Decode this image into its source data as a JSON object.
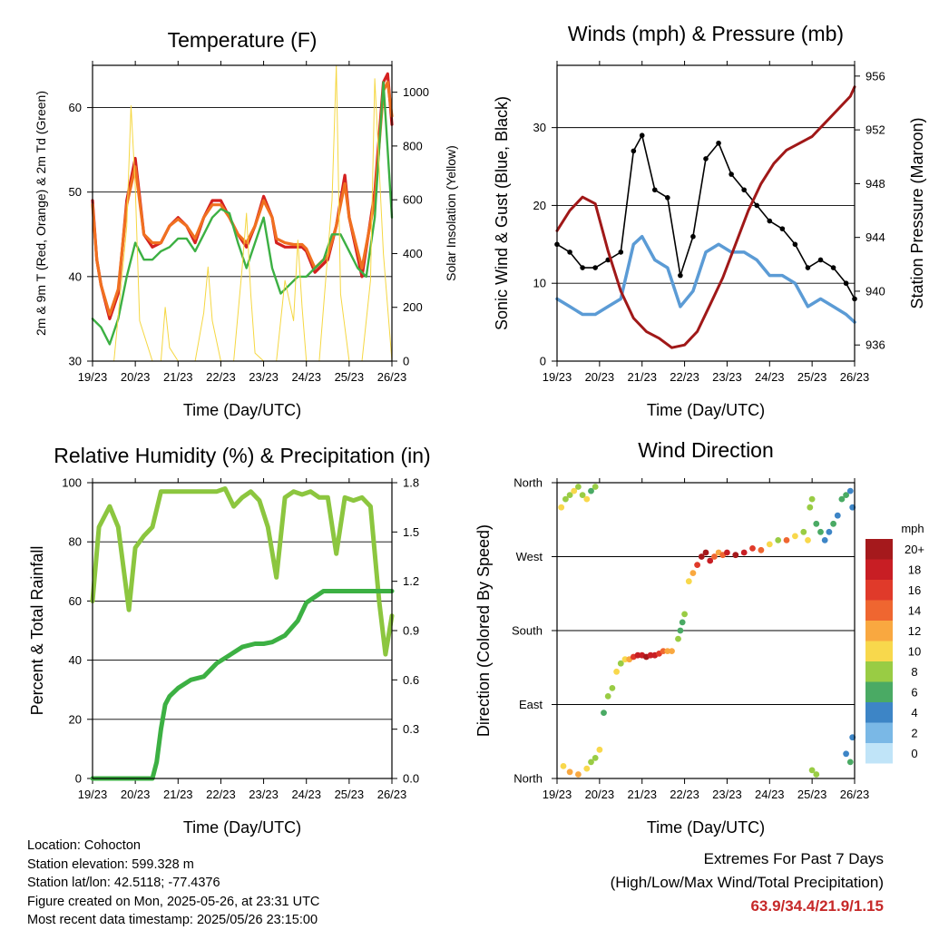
{
  "chart_data": [
    {
      "type": "line",
      "title": "Temperature (F)",
      "xlabel": "Time (Day/UTC)",
      "ylabel": "2m & 9m T (Red, Orange) & 2m Td (Green)",
      "y2label": "Solar Insolation (Yellow)",
      "ylim": [
        30,
        65
      ],
      "y2lim": [
        0,
        1100
      ],
      "yticks": [
        30,
        40,
        50,
        60
      ],
      "y2ticks": [
        0,
        200,
        400,
        600,
        800,
        1000
      ],
      "xticks": [
        "19/23",
        "20/23",
        "21/23",
        "22/23",
        "23/23",
        "24/23",
        "25/23",
        "26/23"
      ],
      "grid": "horizontal",
      "series": [
        {
          "name": "2m T",
          "color": "#d42020",
          "x": [
            0,
            0.1,
            0.2,
            0.4,
            0.6,
            0.8,
            1.0,
            1.2,
            1.4,
            1.6,
            1.8,
            2.0,
            2.2,
            2.4,
            2.6,
            2.8,
            3.0,
            3.2,
            3.4,
            3.6,
            3.8,
            4.0,
            4.2,
            4.3,
            4.5,
            4.7,
            4.9,
            5.0,
            5.2,
            5.5,
            5.7,
            5.9,
            6.0,
            6.3,
            6.6,
            6.8,
            6.9,
            7.0
          ],
          "values": [
            49,
            42,
            39,
            35,
            38,
            49,
            54,
            45,
            43.5,
            44,
            46,
            47,
            46,
            44,
            47,
            49,
            49,
            47,
            45,
            43.5,
            46,
            49.5,
            47,
            44,
            43.5,
            43.5,
            43.5,
            43,
            40.5,
            42,
            46,
            52,
            47,
            40,
            50,
            63,
            64,
            58
          ]
        },
        {
          "name": "9m T",
          "color": "#f07020",
          "x": [
            0,
            0.1,
            0.2,
            0.4,
            0.6,
            0.8,
            1.0,
            1.2,
            1.4,
            1.6,
            1.8,
            2.0,
            2.2,
            2.4,
            2.6,
            2.8,
            3.0,
            3.2,
            3.4,
            3.6,
            3.8,
            4.0,
            4.2,
            4.3,
            4.5,
            4.7,
            4.9,
            5.0,
            5.2,
            5.5,
            5.7,
            5.9,
            6.0,
            6.3,
            6.6,
            6.8,
            6.9,
            7.0
          ],
          "values": [
            48.5,
            42,
            39,
            35.5,
            38.5,
            48.5,
            53,
            45,
            44,
            44,
            46,
            46.8,
            46,
            44.5,
            47,
            48.5,
            48.5,
            47,
            45,
            44,
            46,
            49,
            47,
            44.5,
            44,
            43.8,
            43.8,
            43.3,
            41,
            42.5,
            46,
            51,
            47,
            41,
            49,
            62,
            63,
            59
          ]
        },
        {
          "name": "2m Td",
          "color": "#3cb043",
          "x": [
            0,
            0.2,
            0.4,
            0.6,
            0.8,
            1.0,
            1.2,
            1.4,
            1.6,
            1.8,
            2.0,
            2.2,
            2.4,
            2.6,
            2.8,
            3.0,
            3.2,
            3.4,
            3.6,
            3.8,
            4.0,
            4.2,
            4.4,
            4.6,
            4.8,
            5.0,
            5.2,
            5.4,
            5.6,
            5.8,
            6.0,
            6.2,
            6.4,
            6.6,
            6.8,
            7.0
          ],
          "values": [
            35,
            34,
            32,
            35,
            40,
            44,
            42,
            42,
            43,
            43.5,
            44.5,
            44.5,
            43,
            45,
            47,
            48,
            47.5,
            44,
            41,
            44,
            47,
            41,
            38,
            39,
            40,
            40,
            41,
            42,
            45,
            45,
            43,
            41,
            40,
            47,
            63,
            47
          ]
        },
        {
          "name": "Solar Insolation",
          "color": "#f5d742",
          "x": [
            0,
            0.3,
            0.5,
            0.8,
            0.9,
            1.0,
            1.1,
            1.4,
            1.6,
            1.7,
            1.8,
            2.0,
            2.4,
            2.6,
            2.7,
            2.8,
            3.0,
            3.3,
            3.5,
            3.6,
            3.7,
            3.8,
            4.0,
            4.3,
            4.5,
            4.7,
            4.8,
            4.9,
            5.0,
            5.3,
            5.6,
            5.7,
            5.8,
            6.0,
            6.3,
            6.5,
            6.6,
            6.8,
            7.0
          ],
          "values": [
            0,
            0,
            0,
            500,
            950,
            650,
            150,
            0,
            0,
            200,
            50,
            0,
            0,
            180,
            350,
            150,
            0,
            0,
            350,
            550,
            250,
            30,
            0,
            0,
            300,
            150,
            450,
            200,
            0,
            0,
            600,
            1100,
            250,
            0,
            0,
            300,
            1050,
            400,
            0
          ]
        }
      ]
    },
    {
      "type": "line",
      "title": "Winds (mph) & Pressure (mb)",
      "xlabel": "Time (Day/UTC)",
      "ylabel": "Sonic Wind & Gust (Blue, Black)",
      "y2label": "Station Pressure (Maroon)",
      "ylim": [
        0,
        38
      ],
      "y2lim": [
        934.8,
        956.8
      ],
      "yticks": [
        0,
        10,
        20,
        30
      ],
      "y2ticks": [
        936,
        940,
        944,
        948,
        952,
        956
      ],
      "xticks": [
        "19/23",
        "20/23",
        "21/23",
        "22/23",
        "23/23",
        "24/23",
        "25/23",
        "26/23"
      ],
      "grid": "horizontal",
      "series": [
        {
          "name": "Sonic Wind",
          "color": "#5b9bd5",
          "x": [
            0,
            0.3,
            0.6,
            0.9,
            1.2,
            1.5,
            1.8,
            2.0,
            2.3,
            2.6,
            2.9,
            3.2,
            3.5,
            3.8,
            4.1,
            4.4,
            4.7,
            5.0,
            5.3,
            5.6,
            5.9,
            6.2,
            6.5,
            6.8,
            7.0
          ],
          "values": [
            8,
            7,
            6,
            6,
            7,
            8,
            15,
            16,
            13,
            12,
            7,
            9,
            14,
            15,
            14,
            14,
            13,
            11,
            11,
            10,
            7,
            8,
            7,
            6,
            5
          ]
        },
        {
          "name": "Gust",
          "color": "#000000",
          "x": [
            0,
            0.3,
            0.6,
            0.9,
            1.2,
            1.5,
            1.8,
            2.0,
            2.3,
            2.6,
            2.9,
            3.2,
            3.5,
            3.8,
            4.1,
            4.4,
            4.7,
            5.0,
            5.3,
            5.6,
            5.9,
            6.2,
            6.5,
            6.8,
            7.0
          ],
          "values": [
            15,
            14,
            12,
            12,
            13,
            14,
            27,
            29,
            22,
            21,
            11,
            16,
            26,
            28,
            24,
            22,
            20,
            18,
            17,
            15,
            12,
            13,
            12,
            10,
            8
          ]
        },
        {
          "name": "Station Pressure",
          "color": "#a01818",
          "x": [
            0,
            0.3,
            0.6,
            0.9,
            1.2,
            1.5,
            1.8,
            2.1,
            2.4,
            2.7,
            3.0,
            3.3,
            3.6,
            3.9,
            4.2,
            4.5,
            4.8,
            5.1,
            5.4,
            5.7,
            6.0,
            6.3,
            6.6,
            6.9,
            7.0
          ],
          "values": [
            944.5,
            946,
            947,
            946.5,
            943,
            940,
            938,
            937,
            936.5,
            935.8,
            936,
            937,
            939,
            941,
            943.5,
            946,
            948,
            949.5,
            950.5,
            951,
            951.5,
            952.5,
            953.5,
            954.5,
            955.2
          ]
        }
      ]
    },
    {
      "type": "line",
      "title": "Relative Humidity (%) & Precipitation (in)",
      "xlabel": "Time (Day/UTC)",
      "ylabel": "Percent & Total Rainfall",
      "ylim": [
        0,
        100
      ],
      "y2lim": [
        0,
        1.8
      ],
      "yticks": [
        0,
        20,
        40,
        60,
        80,
        100
      ],
      "y2ticks": [
        "0.0",
        "0.3",
        "0.6",
        "0.9",
        "1.2",
        "1.5",
        "1.8"
      ],
      "xticks": [
        "19/23",
        "20/23",
        "21/23",
        "22/23",
        "23/23",
        "24/23",
        "25/23",
        "26/23"
      ],
      "grid": "horizontal",
      "series": [
        {
          "name": "Relative Humidity",
          "color": "#8cc63f",
          "x": [
            0,
            0.15,
            0.4,
            0.6,
            0.85,
            1.0,
            1.2,
            1.4,
            1.6,
            1.8,
            2.0,
            2.3,
            2.6,
            2.9,
            3.1,
            3.3,
            3.5,
            3.7,
            3.9,
            4.1,
            4.3,
            4.5,
            4.7,
            4.9,
            5.1,
            5.3,
            5.5,
            5.7,
            5.9,
            6.1,
            6.3,
            6.5,
            6.7,
            6.85,
            7.0
          ],
          "values": [
            60,
            85,
            92,
            85,
            57,
            78,
            82,
            85,
            97,
            97,
            97,
            97,
            97,
            97,
            98,
            92,
            95,
            97,
            94,
            85,
            68,
            95,
            97,
            96,
            97,
            95,
            95,
            76,
            95,
            94,
            95,
            92,
            60,
            42,
            55
          ]
        },
        {
          "name": "Total Rainfall",
          "color": "#3cb043",
          "x": [
            0,
            0.5,
            1.0,
            1.4,
            1.5,
            1.6,
            1.7,
            1.8,
            2.0,
            2.3,
            2.6,
            2.9,
            3.2,
            3.5,
            3.8,
            4.0,
            4.2,
            4.5,
            4.8,
            5.0,
            5.4,
            6.0,
            6.5,
            7.0
          ],
          "values": [
            0,
            0,
            0,
            0,
            0.1,
            0.3,
            0.45,
            0.5,
            0.55,
            0.6,
            0.62,
            0.7,
            0.75,
            0.8,
            0.82,
            0.82,
            0.83,
            0.87,
            0.96,
            1.07,
            1.14,
            1.14,
            1.14,
            1.14
          ]
        }
      ]
    },
    {
      "type": "scatter",
      "title": "Wind Direction",
      "xlabel": "Time (Day/UTC)",
      "ylabel": "Direction (Colored By Speed)",
      "ylim": [
        0,
        360
      ],
      "yticks": [
        "North",
        "East",
        "South",
        "West",
        "North"
      ],
      "xticks": [
        "19/23",
        "20/23",
        "21/23",
        "22/23",
        "23/23",
        "24/23",
        "25/23",
        "26/23"
      ],
      "grid": "horizontal",
      "colorbar": {
        "unit": "mph",
        "labels": [
          "20+",
          "18",
          "16",
          "14",
          "12",
          "10",
          "8",
          "6",
          "4",
          "2",
          "0"
        ],
        "colors": [
          "#a5191c",
          "#c81e24",
          "#e03a2a",
          "#ef6630",
          "#f9a840",
          "#f8d84c",
          "#99cc44",
          "#4aaa64",
          "#3d85c6",
          "#7ab8e6",
          "#c0e4f8"
        ]
      },
      "points": [
        [
          0.1,
          330,
          9
        ],
        [
          0.2,
          340,
          8
        ],
        [
          0.3,
          345,
          8
        ],
        [
          0.4,
          350,
          10
        ],
        [
          0.5,
          355,
          8
        ],
        [
          0.6,
          345,
          7
        ],
        [
          0.7,
          340,
          9
        ],
        [
          0.8,
          350,
          6
        ],
        [
          0.9,
          355,
          7
        ],
        [
          0.15,
          15,
          10
        ],
        [
          0.3,
          8,
          12
        ],
        [
          0.5,
          5,
          11
        ],
        [
          0.7,
          12,
          10
        ],
        [
          0.8,
          20,
          8
        ],
        [
          0.9,
          25,
          7
        ],
        [
          1.0,
          35,
          9
        ],
        [
          1.1,
          80,
          6
        ],
        [
          1.2,
          100,
          7
        ],
        [
          1.3,
          110,
          8
        ],
        [
          1.4,
          130,
          9
        ],
        [
          1.5,
          140,
          8
        ],
        [
          1.6,
          145,
          10
        ],
        [
          1.7,
          145,
          12
        ],
        [
          1.8,
          148,
          15
        ],
        [
          1.9,
          150,
          17
        ],
        [
          2.0,
          150,
          18
        ],
        [
          2.1,
          148,
          19
        ],
        [
          2.2,
          150,
          18
        ],
        [
          2.3,
          150,
          17
        ],
        [
          2.4,
          152,
          16
        ],
        [
          2.5,
          155,
          14
        ],
        [
          2.6,
          155,
          12
        ],
        [
          2.7,
          155,
          11
        ],
        [
          2.85,
          170,
          7
        ],
        [
          2.9,
          180,
          5
        ],
        [
          2.95,
          190,
          6
        ],
        [
          3.0,
          200,
          7
        ],
        [
          3.1,
          240,
          10
        ],
        [
          3.2,
          250,
          12
        ],
        [
          3.3,
          260,
          15
        ],
        [
          3.4,
          270,
          20
        ],
        [
          3.5,
          275,
          21
        ],
        [
          3.6,
          265,
          17
        ],
        [
          3.7,
          270,
          14
        ],
        [
          3.8,
          275,
          11
        ],
        [
          3.9,
          272,
          14
        ],
        [
          4.0,
          275,
          17
        ],
        [
          4.2,
          272,
          20
        ],
        [
          4.4,
          275,
          18
        ],
        [
          4.6,
          280,
          16
        ],
        [
          4.8,
          278,
          13
        ],
        [
          5.0,
          285,
          10
        ],
        [
          5.2,
          290,
          8
        ],
        [
          5.4,
          290,
          13
        ],
        [
          5.6,
          295,
          9
        ],
        [
          5.8,
          300,
          7
        ],
        [
          5.9,
          290,
          9
        ],
        [
          5.95,
          330,
          7
        ],
        [
          6.0,
          340,
          8
        ],
        [
          6.1,
          310,
          6
        ],
        [
          6.2,
          300,
          5
        ],
        [
          6.3,
          290,
          4
        ],
        [
          6.4,
          300,
          3
        ],
        [
          6.5,
          310,
          5
        ],
        [
          6.6,
          320,
          4
        ],
        [
          6.7,
          340,
          6
        ],
        [
          6.8,
          345,
          5
        ],
        [
          6.9,
          350,
          4
        ],
        [
          6.95,
          330,
          3
        ],
        [
          6.0,
          10,
          8
        ],
        [
          6.1,
          5,
          7
        ],
        [
          6.8,
          30,
          4
        ],
        [
          6.9,
          20,
          5
        ],
        [
          6.95,
          50,
          3
        ]
      ]
    }
  ],
  "info": {
    "location": "Location: Cohocton",
    "elevation": "Station elevation: 599.328 m",
    "latlon": "Station lat/lon: 42.5118; -77.4376",
    "created": "Figure created on Mon, 2025-05-26, at 23:31 UTC",
    "recent": "Most recent data timestamp: 2025/05/26 23:15:00"
  },
  "extremes": {
    "line1": "Extremes For Past 7 Days",
    "line2": "(High/Low/Max Wind/Total Precipitation)",
    "values": "63.9/34.4/21.9/1.15"
  }
}
